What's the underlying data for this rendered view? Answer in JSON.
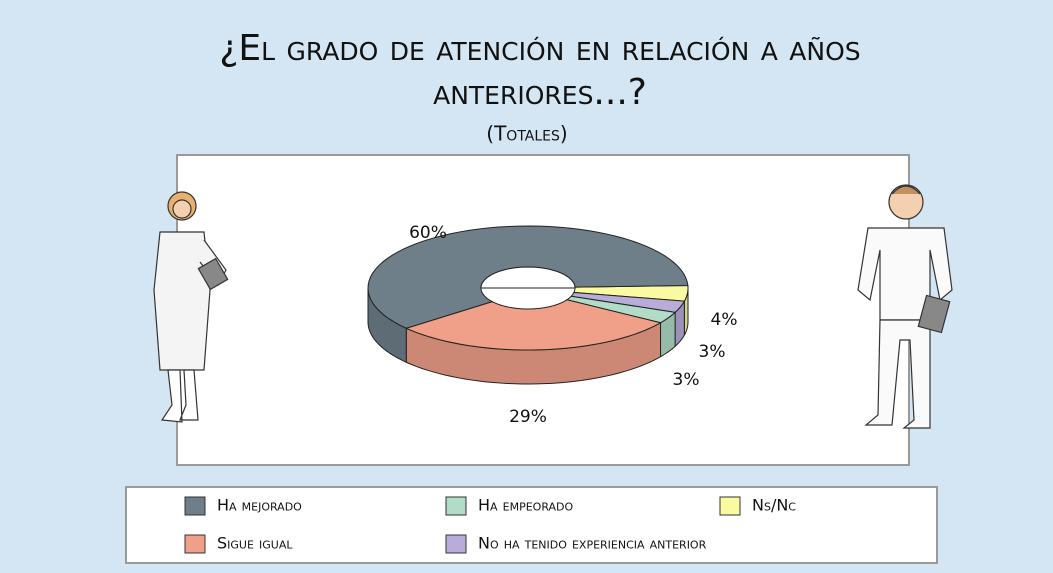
{
  "chart_data": {
    "type": "donut3d",
    "title": "¿El grado de atención en relación a años anteriores...?",
    "subtitle": "(Totales)",
    "categories": [
      "Ns/Nc",
      "No ha tenido experiencia anterior",
      "Ha empeorado",
      "Sigue igual",
      "Ha mejorado"
    ],
    "values": [
      4,
      3,
      3,
      29,
      60
    ],
    "value_labels": [
      "4%",
      "3%",
      "3%",
      "29%",
      "60%"
    ],
    "colors": [
      "#fafaa0",
      "#b8acd8",
      "#b0dcc8",
      "#f0a088",
      "#6f7f8a"
    ]
  }
}
